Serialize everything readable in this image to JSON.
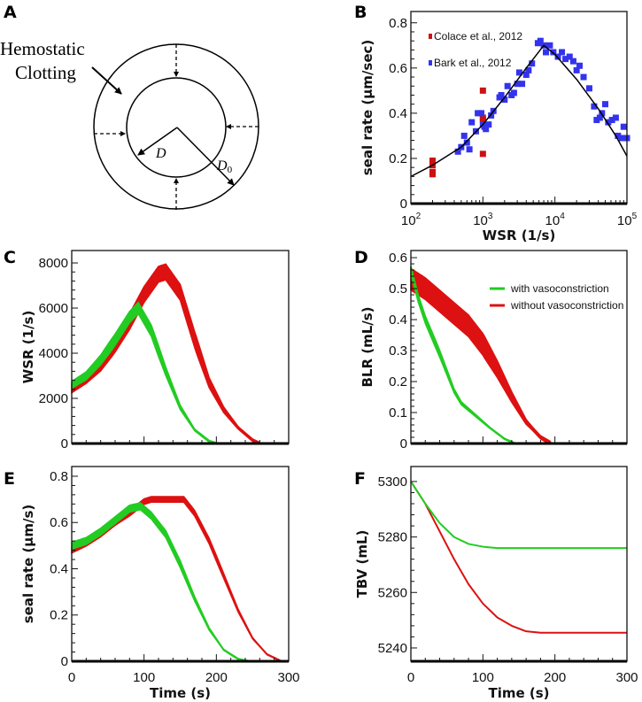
{
  "panel_labels": [
    "A",
    "B",
    "C",
    "D",
    "E",
    "F"
  ],
  "diagram": {
    "annotation_line1": "Hemostatic",
    "annotation_line2": "Clotting",
    "inner_label": "D",
    "outer_label": "D",
    "outer_label_sub": "0"
  },
  "colors": {
    "green": "#22cc22",
    "red": "#dd1111",
    "blue": "#3333ee",
    "bark": "#3333ee",
    "colace": "#cc1111"
  },
  "chart_data": [
    {
      "id": "B",
      "type": "scatter",
      "xscale": "log",
      "xlabel": "WSR (1/s)",
      "ylabel": "seal rate (μm/sec)",
      "xlim": [
        100,
        100000
      ],
      "ylim": [
        0,
        0.85
      ],
      "xticks": [
        100,
        1000,
        10000,
        100000
      ],
      "xtick_labels": [
        [
          "10",
          "2"
        ],
        [
          "10",
          "3"
        ],
        [
          "10",
          "4"
        ],
        [
          "10",
          "5"
        ]
      ],
      "yticks": [
        0,
        0.2,
        0.4,
        0.6,
        0.8
      ],
      "ytick_labels": [
        "0",
        "0.2",
        "0.4",
        "0.6",
        "0.8"
      ],
      "legend": [
        "Colace et al., 2012",
        "Bark et al., 2012"
      ],
      "legend_position": "top-left",
      "series": [
        {
          "name": "Colace et al., 2012",
          "color": "#cc1111",
          "points": [
            [
              200,
              0.19
            ],
            [
              200,
              0.17
            ],
            [
              200,
              0.14
            ],
            [
              200,
              0.13
            ],
            [
              1000,
              0.5
            ],
            [
              1000,
              0.38
            ],
            [
              1000,
              0.37
            ],
            [
              1000,
              0.22
            ]
          ]
        },
        {
          "name": "Bark et al., 2012",
          "color": "#3333ee",
          "points": [
            [
              450,
              0.23
            ],
            [
              500,
              0.25
            ],
            [
              550,
              0.3
            ],
            [
              600,
              0.27
            ],
            [
              650,
              0.24
            ],
            [
              700,
              0.36
            ],
            [
              800,
              0.32
            ],
            [
              850,
              0.4
            ],
            [
              950,
              0.4
            ],
            [
              1000,
              0.35
            ],
            [
              1050,
              0.34
            ],
            [
              1100,
              0.33
            ],
            [
              1200,
              0.35
            ],
            [
              1300,
              0.39
            ],
            [
              1400,
              0.41
            ],
            [
              1700,
              0.47
            ],
            [
              1800,
              0.48
            ],
            [
              2000,
              0.46
            ],
            [
              2200,
              0.52
            ],
            [
              2500,
              0.48
            ],
            [
              2700,
              0.49
            ],
            [
              3000,
              0.53
            ],
            [
              3200,
              0.58
            ],
            [
              3500,
              0.53
            ],
            [
              4000,
              0.57
            ],
            [
              4300,
              0.59
            ],
            [
              4800,
              0.62
            ],
            [
              5800,
              0.71
            ],
            [
              6300,
              0.72
            ],
            [
              7000,
              0.7
            ],
            [
              7500,
              0.67
            ],
            [
              8500,
              0.7
            ],
            [
              9500,
              0.67
            ],
            [
              11000,
              0.65
            ],
            [
              12500,
              0.67
            ],
            [
              14000,
              0.64
            ],
            [
              16000,
              0.65
            ],
            [
              18000,
              0.63
            ],
            [
              20000,
              0.59
            ],
            [
              22000,
              0.61
            ],
            [
              25000,
              0.56
            ],
            [
              30000,
              0.51
            ],
            [
              35000,
              0.43
            ],
            [
              38000,
              0.37
            ],
            [
              42000,
              0.38
            ],
            [
              45000,
              0.4
            ],
            [
              50000,
              0.44
            ],
            [
              55000,
              0.36
            ],
            [
              62000,
              0.37
            ],
            [
              70000,
              0.38
            ],
            [
              75000,
              0.3
            ],
            [
              85000,
              0.29
            ],
            [
              90000,
              0.34
            ],
            [
              100000,
              0.29
            ]
          ]
        },
        {
          "name": "fit",
          "color": "#000000",
          "line": true,
          "points": [
            [
              100,
              0.12
            ],
            [
              200,
              0.17
            ],
            [
              500,
              0.25
            ],
            [
              1000,
              0.35
            ],
            [
              2000,
              0.47
            ],
            [
              4000,
              0.6
            ],
            [
              7000,
              0.7
            ],
            [
              10000,
              0.66
            ],
            [
              20000,
              0.55
            ],
            [
              40000,
              0.42
            ],
            [
              70000,
              0.3
            ],
            [
              100000,
              0.21
            ]
          ]
        }
      ]
    },
    {
      "id": "C",
      "type": "line",
      "xlabel": "",
      "ylabel": "WSR (1/s)",
      "xlim": [
        0,
        300
      ],
      "ylim": [
        0,
        8550
      ],
      "xticks": [
        0,
        100,
        200,
        300
      ],
      "xtick_labels": [],
      "yticks": [
        0,
        2000,
        4000,
        6000,
        8000
      ],
      "ytick_labels": [
        "0",
        "2000",
        "4000",
        "6000",
        "8000"
      ],
      "series": [
        {
          "name": "without vasoconstriction",
          "color": "#dd1111",
          "band": 350,
          "points": [
            [
              0,
              2450
            ],
            [
              20,
              2900
            ],
            [
              40,
              3500
            ],
            [
              60,
              4400
            ],
            [
              80,
              5400
            ],
            [
              100,
              6600
            ],
            [
              120,
              7500
            ],
            [
              130,
              7600
            ],
            [
              150,
              6700
            ],
            [
              170,
              4600
            ],
            [
              190,
              2700
            ],
            [
              210,
              1500
            ],
            [
              230,
              700
            ],
            [
              250,
              150
            ],
            [
              260,
              0
            ]
          ]
        },
        {
          "name": "with vasoconstriction",
          "color": "#22cc22",
          "band": 250,
          "points": [
            [
              0,
              2600
            ],
            [
              20,
              3000
            ],
            [
              40,
              3700
            ],
            [
              60,
              4600
            ],
            [
              80,
              5600
            ],
            [
              92,
              6000
            ],
            [
              110,
              5000
            ],
            [
              130,
              3200
            ],
            [
              150,
              1600
            ],
            [
              170,
              600
            ],
            [
              190,
              100
            ],
            [
              200,
              0
            ]
          ]
        }
      ]
    },
    {
      "id": "D",
      "type": "line",
      "xlabel": "",
      "ylabel": "BLR (mL/s)",
      "xlim": [
        0,
        300
      ],
      "ylim": [
        0,
        0.623
      ],
      "xticks": [
        0,
        100,
        200,
        300
      ],
      "xtick_labels": [],
      "yticks": [
        0,
        0.1,
        0.2,
        0.3,
        0.4,
        0.5,
        0.6
      ],
      "ytick_labels": [
        "0",
        "0.1",
        "0.2",
        "0.3",
        "0.4",
        "0.5",
        "0.6"
      ],
      "legend": [
        "with vasoconstriction",
        "without vasoconstriction"
      ],
      "legend_position": "top-right",
      "series": [
        {
          "name": "without vasoconstriction",
          "color": "#dd1111",
          "band": 0.035,
          "points": [
            [
              0,
              0.53
            ],
            [
              20,
              0.5
            ],
            [
              40,
              0.46
            ],
            [
              60,
              0.42
            ],
            [
              80,
              0.38
            ],
            [
              100,
              0.32
            ],
            [
              120,
              0.24
            ],
            [
              140,
              0.15
            ],
            [
              160,
              0.07
            ],
            [
              180,
              0.02
            ],
            [
              195,
              0
            ]
          ]
        },
        {
          "name": "with vasoconstriction",
          "color": "#22cc22",
          "band": 0.012,
          "points": [
            [
              0,
              0.56
            ],
            [
              10,
              0.47
            ],
            [
              20,
              0.4
            ],
            [
              40,
              0.29
            ],
            [
              60,
              0.17
            ],
            [
              70,
              0.13
            ],
            [
              90,
              0.09
            ],
            [
              110,
              0.05
            ],
            [
              130,
              0.015
            ],
            [
              145,
              0
            ]
          ]
        }
      ]
    },
    {
      "id": "E",
      "type": "line",
      "xlabel": "Time (s)",
      "ylabel": "seal rate (μm/s)",
      "xlim": [
        0,
        300
      ],
      "ylim": [
        0,
        0.842
      ],
      "xticks": [
        0,
        100,
        200,
        300
      ],
      "xtick_labels": [
        "0",
        "100",
        "200",
        "300"
      ],
      "yticks": [
        0,
        0.2,
        0.4,
        0.6,
        0.8
      ],
      "ytick_labels": [
        "0",
        "0.2",
        "0.4",
        "0.6",
        "0.8"
      ],
      "series": [
        {
          "name": "without vasoconstriction",
          "color": "#dd1111",
          "band": 0.012,
          "points": [
            [
              0,
              0.48
            ],
            [
              20,
              0.51
            ],
            [
              40,
              0.55
            ],
            [
              60,
              0.6
            ],
            [
              80,
              0.64
            ],
            [
              100,
              0.69
            ],
            [
              110,
              0.7
            ],
            [
              155,
              0.7
            ],
            [
              170,
              0.64
            ],
            [
              190,
              0.52
            ],
            [
              210,
              0.37
            ],
            [
              230,
              0.22
            ],
            [
              250,
              0.1
            ],
            [
              270,
              0.03
            ],
            [
              290,
              0
            ]
          ]
        },
        {
          "name": "with vasoconstriction",
          "color": "#22cc22",
          "band": 0.015,
          "points": [
            [
              0,
              0.5
            ],
            [
              20,
              0.52
            ],
            [
              40,
              0.56
            ],
            [
              60,
              0.61
            ],
            [
              80,
              0.66
            ],
            [
              95,
              0.67
            ],
            [
              110,
              0.63
            ],
            [
              130,
              0.55
            ],
            [
              150,
              0.42
            ],
            [
              170,
              0.27
            ],
            [
              190,
              0.14
            ],
            [
              210,
              0.05
            ],
            [
              230,
              0.01
            ],
            [
              245,
              0
            ]
          ]
        }
      ]
    },
    {
      "id": "F",
      "type": "line",
      "xlabel": "Time (s)",
      "ylabel": "TBV (mL)",
      "xlim": [
        0,
        300
      ],
      "ylim": [
        5235.2,
        5305.4
      ],
      "xticks": [
        0,
        100,
        200,
        300
      ],
      "xtick_labels": [
        "0",
        "100",
        "200",
        "300"
      ],
      "yticks": [
        5240,
        5260,
        5280,
        5300
      ],
      "ytick_labels": [
        "5240",
        "5260",
        "5280",
        "5300"
      ],
      "series": [
        {
          "name": "without vasoconstriction",
          "color": "#dd1111",
          "band": 0,
          "points": [
            [
              0,
              5300
            ],
            [
              20,
              5292
            ],
            [
              40,
              5282
            ],
            [
              60,
              5272
            ],
            [
              80,
              5263
            ],
            [
              100,
              5256
            ],
            [
              120,
              5251
            ],
            [
              140,
              5248
            ],
            [
              160,
              5246
            ],
            [
              180,
              5245.5
            ],
            [
              300,
              5245.5
            ]
          ]
        },
        {
          "name": "with vasoconstriction",
          "color": "#22cc22",
          "band": 0,
          "points": [
            [
              0,
              5300
            ],
            [
              20,
              5292
            ],
            [
              40,
              5285
            ],
            [
              60,
              5280
            ],
            [
              80,
              5277.5
            ],
            [
              100,
              5276.5
            ],
            [
              120,
              5276
            ],
            [
              300,
              5276
            ]
          ]
        }
      ]
    }
  ]
}
